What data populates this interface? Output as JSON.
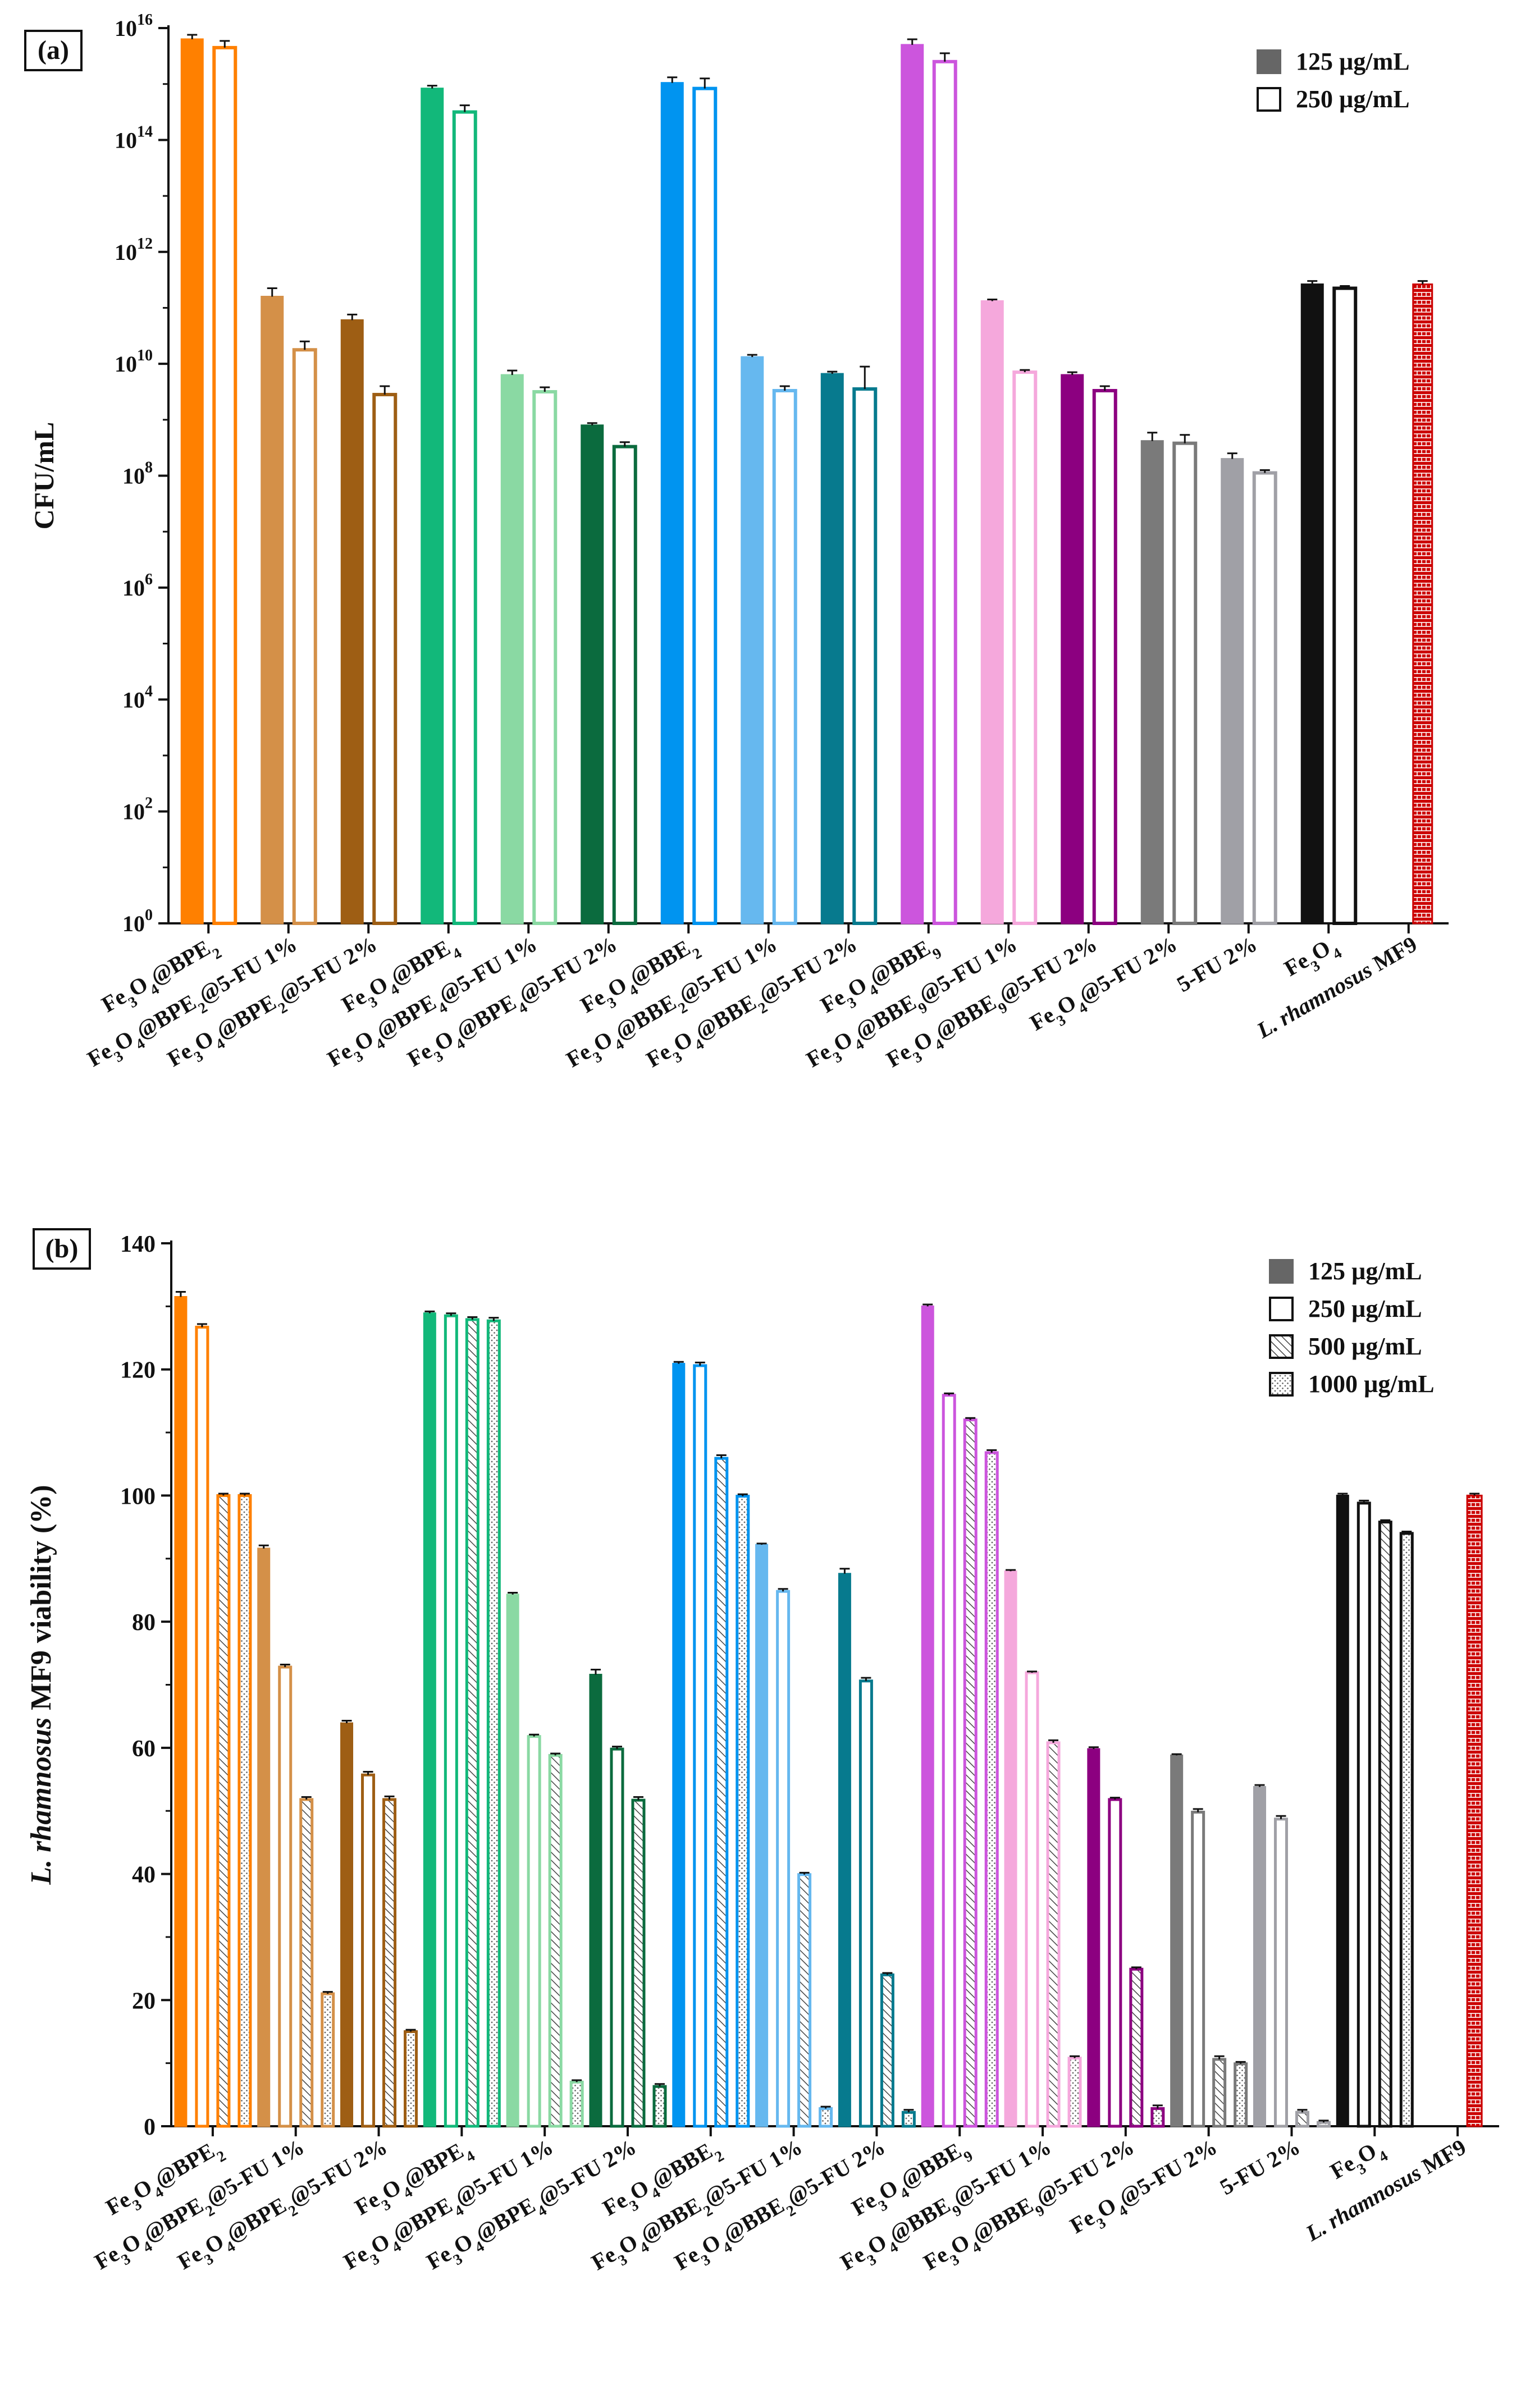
{
  "colors": {
    "orange": "#ff8000",
    "tan": "#d49048",
    "brown": "#9e5e14",
    "green": "#12b87a",
    "lightgreen": "#8ad9a3",
    "darkgreen": "#0b6b3e",
    "blue": "#0094f0",
    "lightblue": "#66b8ef",
    "teal": "#077a8e",
    "violet": "#cc55dd",
    "pink": "#f5a8dc",
    "purple": "#8c0080",
    "gray": "#7a7a7a",
    "lightgray": "#a0a0a6",
    "black": "#111111",
    "red": "#cc0000",
    "legend_swatch": "#666666"
  },
  "chart_data": [
    {
      "type": "bar",
      "panel_label": "(a)",
      "ylabel": "CFU/mL",
      "yscale": "log",
      "ylim_exp": [
        0,
        16
      ],
      "ytick_labels": [
        {
          "base": "10",
          "exp": "0"
        },
        {
          "base": "10",
          "exp": "2"
        },
        {
          "base": "10",
          "exp": "4"
        },
        {
          "base": "10",
          "exp": "6"
        },
        {
          "base": "10",
          "exp": "8"
        },
        {
          "base": "10",
          "exp": "10"
        },
        {
          "base": "10",
          "exp": "12"
        },
        {
          "base": "10",
          "exp": "14"
        },
        {
          "base": "10",
          "exp": "16"
        }
      ],
      "legend": [
        "125 µg/mL",
        "250 µg/mL"
      ],
      "legend_position": "top-right",
      "categories": [
        {
          "label": "Fe3O4@BPE2",
          "color": "orange",
          "values": [
            15.8,
            15.65
          ],
          "errors": [
            0.08,
            0.12
          ]
        },
        {
          "label": "Fe3O4@BPE2@5-FU 1%",
          "color": "tan",
          "values": [
            11.2,
            10.25
          ],
          "errors": [
            0.15,
            0.15
          ]
        },
        {
          "label": "Fe3O4@BPE2@5-FU 2%",
          "color": "brown",
          "values": [
            10.78,
            9.45
          ],
          "errors": [
            0.1,
            0.15
          ]
        },
        {
          "label": "Fe3O4@BPE4",
          "color": "green",
          "values": [
            14.92,
            14.5
          ],
          "errors": [
            0.05,
            0.12
          ]
        },
        {
          "label": "Fe3O4@BPE4@5-FU 1%",
          "color": "lightgreen",
          "values": [
            9.8,
            9.5
          ],
          "errors": [
            0.08,
            0.08
          ]
        },
        {
          "label": "Fe3O4@BPE4@5-FU 2%",
          "color": "darkgreen",
          "values": [
            8.9,
            8.52
          ],
          "errors": [
            0.04,
            0.08
          ]
        },
        {
          "label": "Fe3O4@BBE2",
          "color": "blue",
          "values": [
            15.02,
            14.92
          ],
          "errors": [
            0.1,
            0.18
          ]
        },
        {
          "label": "Fe3O4@BBE2@5-FU 1%",
          "color": "lightblue",
          "values": [
            10.12,
            9.52
          ],
          "errors": [
            0.04,
            0.08
          ]
        },
        {
          "label": "Fe3O4@BBE2@5-FU 2%",
          "color": "teal",
          "values": [
            9.82,
            9.55
          ],
          "errors": [
            0.04,
            0.4
          ]
        },
        {
          "label": "Fe3O4@BBE9",
          "color": "violet",
          "values": [
            15.7,
            15.4
          ],
          "errors": [
            0.1,
            0.15
          ]
        },
        {
          "label": "Fe3O4@BBE9@5-FU 1%",
          "color": "pink",
          "values": [
            11.12,
            9.85
          ],
          "errors": [
            0.03,
            0.04
          ]
        },
        {
          "label": "Fe3O4@BBE9@5-FU 2%",
          "color": "purple",
          "values": [
            9.8,
            9.52
          ],
          "errors": [
            0.05,
            0.08
          ]
        },
        {
          "label": "Fe3O4@5-FU 2%",
          "color": "gray",
          "values": [
            8.62,
            8.58
          ],
          "errors": [
            0.15,
            0.15
          ]
        },
        {
          "label": "5-FU 2%",
          "color": "lightgray",
          "values": [
            8.3,
            8.05
          ],
          "errors": [
            0.1,
            0.05
          ]
        },
        {
          "label": "Fe3O4",
          "color": "black",
          "values": [
            11.42,
            11.35
          ],
          "errors": [
            0.06,
            0.04
          ]
        },
        {
          "label": "L. rhamnosus MF9",
          "color": "red",
          "values": [
            11.42
          ],
          "errors": [
            0.06
          ],
          "control": true
        }
      ]
    },
    {
      "type": "bar",
      "panel_label": "(b)",
      "ylabel": "L. rhamnosus MF9 viability (%)",
      "ylim": [
        0,
        140
      ],
      "yticks": [
        "0",
        "20",
        "40",
        "60",
        "80",
        "100",
        "120",
        "140"
      ],
      "legend": [
        "125 µg/mL",
        "250 µg/mL",
        "500 µg/mL",
        "1000 µg/mL"
      ],
      "legend_position": "top-right",
      "categories": [
        {
          "label": "Fe3O4@BPE2",
          "color": "orange",
          "values": [
            131.5,
            126.7,
            100,
            100
          ],
          "errors": [
            0.8,
            0.5,
            0.3,
            0.3
          ]
        },
        {
          "label": "Fe3O4@BPE2@5-FU 1%",
          "color": "tan",
          "values": [
            91.6,
            72.8,
            51.8,
            21
          ],
          "errors": [
            0.5,
            0.4,
            0.4,
            0.3
          ]
        },
        {
          "label": "Fe3O4@BPE2@5-FU 2%",
          "color": "brown",
          "values": [
            63.9,
            55.7,
            51.8,
            15
          ],
          "errors": [
            0.4,
            0.5,
            0.5,
            0.3
          ]
        },
        {
          "label": "Fe3O4@BPE4",
          "color": "green",
          "values": [
            128.9,
            128.5,
            127.9,
            127.7
          ],
          "errors": [
            0.3,
            0.4,
            0.4,
            0.5
          ]
        },
        {
          "label": "Fe3O4@BPE4@5-FU 1%",
          "color": "lightgreen",
          "values": [
            84.3,
            61.8,
            58.8,
            7
          ],
          "errors": [
            0.3,
            0.3,
            0.3,
            0.3
          ]
        },
        {
          "label": "Fe3O4@BPE4@5-FU 2%",
          "color": "darkgreen",
          "values": [
            71.6,
            59.8,
            51.7,
            6.3
          ],
          "errors": [
            0.8,
            0.4,
            0.5,
            0.4
          ]
        },
        {
          "label": "Fe3O4@BBE2",
          "color": "blue",
          "values": [
            120.9,
            120.6,
            105.9,
            99.9
          ],
          "errors": [
            0.3,
            0.5,
            0.5,
            0.3
          ]
        },
        {
          "label": "Fe3O4@BBE2@5-FU 1%",
          "color": "lightblue",
          "values": [
            92.2,
            84.8,
            39.9,
            2.8
          ],
          "errors": [
            0.2,
            0.4,
            0.3,
            0.3
          ]
        },
        {
          "label": "Fe3O4@BBE2@5-FU 2%",
          "color": "teal",
          "values": [
            87.6,
            70.6,
            24,
            2.2
          ],
          "errors": [
            0.8,
            0.5,
            0.3,
            0.4
          ]
        },
        {
          "label": "Fe3O4@BBE9",
          "color": "violet",
          "values": [
            130,
            115.9,
            112,
            106.8
          ],
          "errors": [
            0.3,
            0.3,
            0.3,
            0.4
          ]
        },
        {
          "label": "Fe3O4@BBE9@5-FU 1%",
          "color": "pink",
          "values": [
            88,
            71.9,
            60.8,
            10.8
          ],
          "errors": [
            0.2,
            0.2,
            0.4,
            0.3
          ]
        },
        {
          "label": "Fe3O4@BBE9@5-FU 2%",
          "color": "purple",
          "values": [
            59.8,
            51.8,
            24.9,
            2.8
          ],
          "errors": [
            0.3,
            0.3,
            0.3,
            0.5
          ]
        },
        {
          "label": "Fe3O4@5-FU 2%",
          "color": "gray",
          "values": [
            58.8,
            49.8,
            10.6,
            9.9
          ],
          "errors": [
            0.2,
            0.5,
            0.5,
            0.3
          ]
        },
        {
          "label": "5-FU 2%",
          "color": "lightgray",
          "values": [
            53.8,
            48.7,
            2.2,
            0.6
          ],
          "errors": [
            0.3,
            0.5,
            0.4,
            0.3
          ]
        },
        {
          "label": "Fe3O4",
          "color": "black",
          "values": [
            100,
            98.8,
            95.8,
            94
          ],
          "errors": [
            0.3,
            0.4,
            0.3,
            0.3
          ]
        },
        {
          "label": "L. rhamnosus MF9",
          "color": "red",
          "values": [
            100
          ],
          "errors": [
            0.3
          ],
          "control": true
        }
      ]
    }
  ]
}
